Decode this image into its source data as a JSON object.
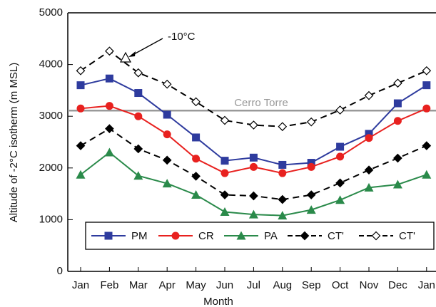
{
  "chart_data": {
    "type": "line",
    "x_label": "Month",
    "y_label": "Altitude of -2°C isotherm (m MSL)",
    "categories": [
      "Jan",
      "Feb",
      "Mar",
      "Apr",
      "May",
      "Jun",
      "Jul",
      "Aug",
      "Sep",
      "Oct",
      "Nov",
      "Dec",
      "Jan"
    ],
    "ylim": [
      0,
      5000
    ],
    "yticks": [
      0,
      1000,
      2000,
      3000,
      4000,
      5000
    ],
    "reference_line": {
      "label": "Cerro Torre",
      "value": 3110,
      "color": "#999999"
    },
    "annotation": "-10°C",
    "legend": "lower center",
    "series": [
      {
        "name": "PM",
        "color": "#2e3b9e",
        "marker": "square",
        "dash": false,
        "values": [
          3600,
          3730,
          3450,
          3030,
          2590,
          2140,
          2200,
          2060,
          2100,
          2410,
          2660,
          3250,
          3600
        ]
      },
      {
        "name": "CR",
        "color": "#e8211f",
        "marker": "circle",
        "dash": false,
        "values": [
          3150,
          3200,
          3000,
          2650,
          2180,
          1900,
          2020,
          1900,
          2020,
          2220,
          2580,
          2910,
          3150
        ]
      },
      {
        "name": "PA",
        "color": "#2a8a4a",
        "marker": "triangle",
        "dash": false,
        "values": [
          1870,
          2300,
          1850,
          1700,
          1480,
          1150,
          1100,
          1080,
          1190,
          1380,
          1620,
          1680,
          1870
        ]
      },
      {
        "name": "CT'",
        "color": "#000000",
        "marker": "diamond",
        "dash": true,
        "values": [
          2430,
          2760,
          2370,
          2150,
          1840,
          1480,
          1460,
          1390,
          1480,
          1710,
          1960,
          2190,
          2430
        ]
      },
      {
        "name": "CT'",
        "color": "#000000",
        "marker": "open-diamond",
        "dash": true,
        "values": [
          3880,
          4260,
          3840,
          3620,
          3280,
          2920,
          2830,
          2800,
          2890,
          3120,
          3400,
          3640,
          3880
        ]
      }
    ]
  }
}
